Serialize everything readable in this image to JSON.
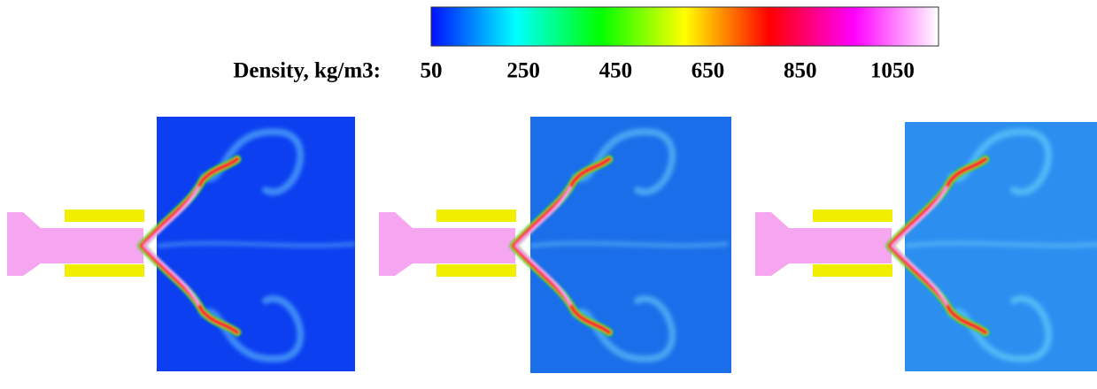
{
  "colorbar": {
    "label": "Density, kg/m3:",
    "range": [
      50,
      1150
    ],
    "ticks": [
      50,
      250,
      450,
      650,
      850,
      1050
    ],
    "colors": [
      "#0010ff",
      "#00ffff",
      "#00ff00",
      "#ffff00",
      "#ff0000",
      "#ff00ff",
      "#ffffff"
    ]
  }
}
